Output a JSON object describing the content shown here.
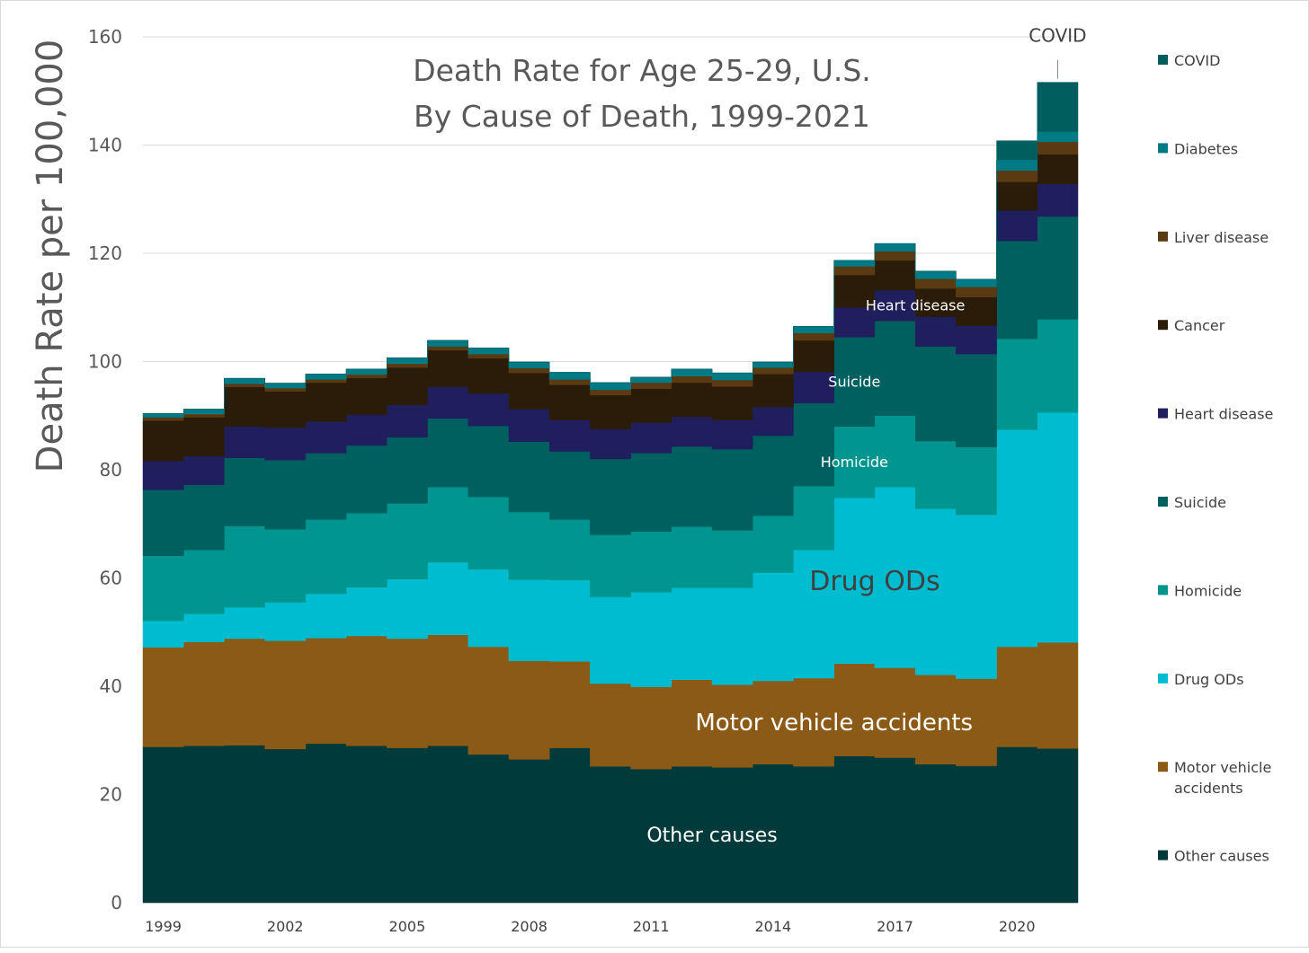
{
  "chart_data": {
    "type": "area",
    "title_lines": [
      "Death Rate for Age 25-29, U.S.",
      "By Cause of Death, 1999-2021"
    ],
    "ylabel": "Death Rate per 100,000",
    "xlabel": "",
    "ylim": [
      0,
      160
    ],
    "yticks": [
      0,
      20,
      40,
      60,
      80,
      100,
      120,
      140,
      160
    ],
    "grid": true,
    "legend_position": "right",
    "years": [
      1999,
      2000,
      2001,
      2002,
      2003,
      2004,
      2005,
      2006,
      2007,
      2008,
      2009,
      2010,
      2011,
      2012,
      2013,
      2014,
      2015,
      2016,
      2017,
      2018,
      2019,
      2020,
      2021
    ],
    "x_tick_labels": [
      "1999",
      "2002",
      "2005",
      "2008",
      "2011",
      "2014",
      "2017",
      "2020"
    ],
    "x_tick_years": [
      1999,
      2002,
      2005,
      2008,
      2011,
      2014,
      2017,
      2020
    ],
    "series": [
      {
        "name": "Other causes",
        "color": "#003a3a",
        "values": [
          28.8,
          29.0,
          29.1,
          28.4,
          29.4,
          29.0,
          28.6,
          29.0,
          27.4,
          26.5,
          28.6,
          25.2,
          24.7,
          25.2,
          25.0,
          25.6,
          25.2,
          27.1,
          26.8,
          25.6,
          25.3,
          28.8,
          28.5
        ]
      },
      {
        "name": "Motor vehicle accidents",
        "color": "#8b5a16",
        "values": [
          18.4,
          19.2,
          19.7,
          20.0,
          19.5,
          20.3,
          20.2,
          20.5,
          19.9,
          18.2,
          16.0,
          15.3,
          15.2,
          16.0,
          15.3,
          15.4,
          16.3,
          17.1,
          16.6,
          16.5,
          16.1,
          18.5,
          19.6
        ]
      },
      {
        "name": "Drug ODs",
        "color": "#00bcd0",
        "values": [
          4.9,
          5.2,
          5.8,
          7.1,
          8.2,
          9.0,
          11.0,
          13.4,
          14.3,
          15.0,
          15.0,
          16.0,
          17.5,
          17.0,
          17.9,
          20.0,
          23.7,
          30.6,
          33.4,
          30.7,
          30.3,
          40.1,
          42.5
        ]
      },
      {
        "name": "Homicide",
        "color": "#00968f",
        "values": [
          12.0,
          11.8,
          15.0,
          13.5,
          13.7,
          13.7,
          14.0,
          13.9,
          13.4,
          12.5,
          11.2,
          11.5,
          11.2,
          11.3,
          10.6,
          10.5,
          11.8,
          13.2,
          13.2,
          12.5,
          12.5,
          16.8,
          17.2
        ]
      },
      {
        "name": "Suicide",
        "color": "#006060",
        "values": [
          12.2,
          12.0,
          12.6,
          12.8,
          12.3,
          12.5,
          12.2,
          12.7,
          13.1,
          13.0,
          12.6,
          14.0,
          14.5,
          14.8,
          15.0,
          14.8,
          15.3,
          16.5,
          17.5,
          17.5,
          17.2,
          18.1,
          19.0
        ]
      },
      {
        "name": "Heart disease",
        "color": "#1f1f5e",
        "values": [
          5.3,
          5.3,
          5.8,
          6.0,
          5.8,
          5.7,
          6.0,
          5.8,
          6.0,
          6.0,
          5.8,
          5.5,
          5.6,
          5.5,
          5.4,
          5.3,
          5.8,
          5.5,
          5.7,
          5.5,
          5.2,
          5.6,
          6.0
        ]
      },
      {
        "name": "Cancer",
        "color": "#2b1c0a",
        "values": [
          7.5,
          7.2,
          7.3,
          6.7,
          7.2,
          6.8,
          6.9,
          6.8,
          6.5,
          6.7,
          6.5,
          6.3,
          6.3,
          6.3,
          6.2,
          6.1,
          5.8,
          6.0,
          5.5,
          5.2,
          5.3,
          5.3,
          5.5
        ]
      },
      {
        "name": "Liver disease",
        "color": "#5a3a12",
        "values": [
          0.6,
          0.6,
          0.6,
          0.6,
          0.6,
          0.6,
          0.7,
          0.7,
          0.8,
          0.9,
          1.0,
          1.0,
          1.1,
          1.2,
          1.2,
          1.2,
          1.4,
          1.6,
          1.7,
          1.8,
          1.9,
          2.1,
          2.3
        ]
      },
      {
        "name": "Diabetes",
        "color": "#007a85",
        "values": [
          0.7,
          0.9,
          1.0,
          0.9,
          1.0,
          1.0,
          1.1,
          1.1,
          1.1,
          1.1,
          1.3,
          1.3,
          1.0,
          1.3,
          1.3,
          1.0,
          1.2,
          1.1,
          1.4,
          1.4,
          1.4,
          2.0,
          1.9
        ]
      },
      {
        "name": "COVID",
        "color": "#005e5e",
        "values": [
          0,
          0,
          0,
          0,
          0,
          0,
          0,
          0,
          0,
          0,
          0,
          0,
          0,
          0,
          0,
          0,
          0,
          0,
          0,
          0,
          0,
          3.5,
          9.1
        ]
      }
    ],
    "legend_items": [
      "COVID",
      "Diabetes",
      "Liver disease",
      "Cancer",
      "Heart disease",
      "Suicide",
      "Homicide",
      "Drug ODs",
      "Motor vehicle accidents",
      "Other causes"
    ],
    "annotations": [
      {
        "text": "COVID",
        "series": "COVID",
        "year": 2021,
        "kind": "callout",
        "style": "dark"
      },
      {
        "text": "Heart disease",
        "series": "Heart disease",
        "year": 2017.5,
        "kind": "inline",
        "style": "white"
      },
      {
        "text": "Suicide",
        "series": "Suicide",
        "year": 2016,
        "kind": "inline",
        "style": "white"
      },
      {
        "text": "Homicide",
        "series": "Homicide",
        "year": 2016,
        "kind": "inline",
        "style": "white"
      },
      {
        "text": "Drug ODs",
        "series": "Drug ODs",
        "year": 2016.5,
        "kind": "inline",
        "style": "dark"
      },
      {
        "text": "Motor vehicle accidents",
        "series": "Motor vehicle accidents",
        "year": 2015.5,
        "kind": "inline",
        "style": "white"
      },
      {
        "text": "Other causes",
        "series": "Other causes",
        "year": 2012.5,
        "kind": "inline",
        "style": "white"
      }
    ]
  }
}
